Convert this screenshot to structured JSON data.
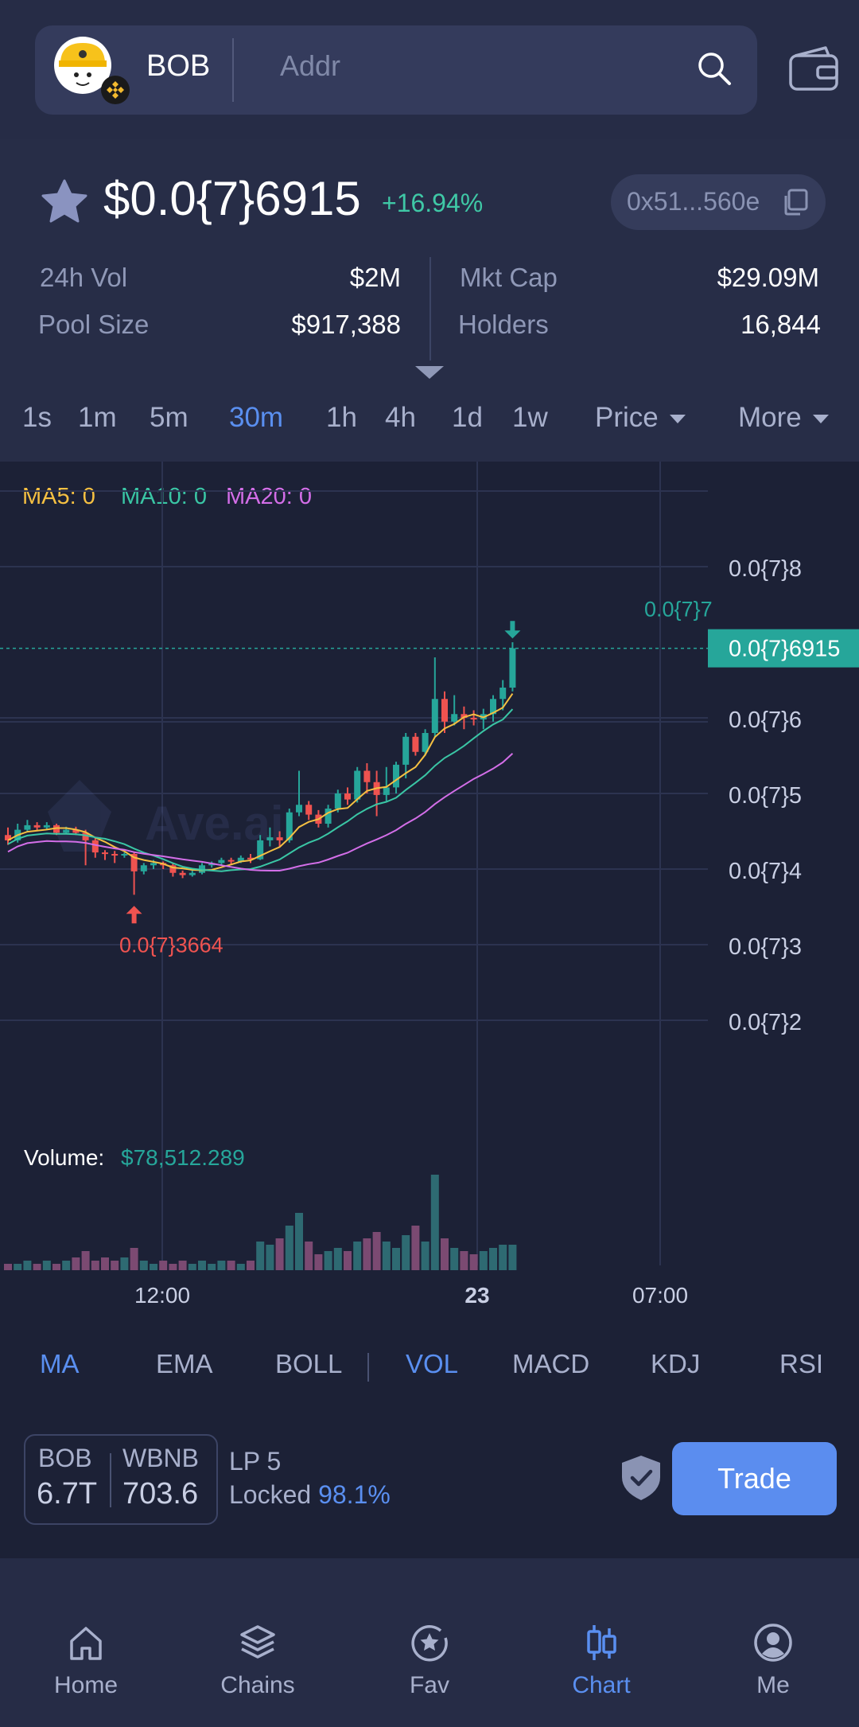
{
  "search": {
    "token": "BOB",
    "placeholder": "Addr"
  },
  "token": {
    "price": "$0.0{7}6915",
    "change": "+16.94%",
    "address": "0x51...560e",
    "stats": {
      "vol_label": "24h Vol",
      "vol": "$2M",
      "mcap_label": "Mkt Cap",
      "mcap": "$29.09M",
      "pool_label": "Pool Size",
      "pool": "$917,388",
      "holders_label": "Holders",
      "holders": "16,844"
    }
  },
  "timeframes": [
    "1s",
    "1m",
    "5m",
    "30m",
    "1h",
    "4h",
    "1d",
    "1w"
  ],
  "active_timeframe": "30m",
  "dropdowns": {
    "price": "Price",
    "more": "More"
  },
  "ma_legend": {
    "ma5": "MA5: 0",
    "ma10": "MA10: 0",
    "ma20": "MA20: 0"
  },
  "colors": {
    "up": "#26a69a",
    "down": "#ef5350",
    "ma5": "#f5c042",
    "ma10": "#3ac6a5",
    "ma20": "#d36ee8",
    "accent": "#5a8ff0",
    "volume_down": "#7b4a72",
    "volume_up": "#2e6a72"
  },
  "chart_data": {
    "type": "candlestick",
    "y_axis_labels": [
      "0.0{7}8",
      "0.0{7}6",
      "0.0{7}5",
      "0.0{7}4",
      "0.0{7}3",
      "0.0{7}2"
    ],
    "x_axis_labels": [
      "12:00",
      "23",
      "07:00"
    ],
    "current_price_label": "0.0{7}6915",
    "high_label": "0.0{7}7",
    "low_label": "0.0{7}3664",
    "volume_label": "Volume:",
    "volume_value": "$78,512.289",
    "watermark": "Ave.ai",
    "candles": [
      {
        "o": 4.45,
        "c": 4.38,
        "h": 4.55,
        "l": 4.32
      },
      {
        "o": 4.38,
        "c": 4.52,
        "h": 4.6,
        "l": 4.35
      },
      {
        "o": 4.52,
        "c": 4.58,
        "h": 4.65,
        "l": 4.5
      },
      {
        "o": 4.58,
        "c": 4.55,
        "h": 4.62,
        "l": 4.5
      },
      {
        "o": 4.55,
        "c": 4.58,
        "h": 4.62,
        "l": 4.52
      },
      {
        "o": 4.58,
        "c": 4.48,
        "h": 4.6,
        "l": 4.45
      },
      {
        "o": 4.48,
        "c": 4.52,
        "h": 4.56,
        "l": 4.46
      },
      {
        "o": 4.52,
        "c": 4.48,
        "h": 4.56,
        "l": 4.45
      },
      {
        "o": 4.48,
        "c": 4.38,
        "h": 4.52,
        "l": 4.05
      },
      {
        "o": 4.38,
        "c": 4.22,
        "h": 4.42,
        "l": 4.15
      },
      {
        "o": 4.22,
        "c": 4.2,
        "h": 4.25,
        "l": 4.12
      },
      {
        "o": 4.2,
        "c": 4.18,
        "h": 4.24,
        "l": 4.08
      },
      {
        "o": 4.18,
        "c": 4.2,
        "h": 4.22,
        "l": 4.15
      },
      {
        "o": 4.2,
        "c": 3.97,
        "h": 4.22,
        "l": 3.66
      },
      {
        "o": 3.97,
        "c": 4.05,
        "h": 4.08,
        "l": 3.93
      },
      {
        "o": 4.05,
        "c": 4.08,
        "h": 4.12,
        "l": 4.0
      },
      {
        "o": 4.08,
        "c": 4.05,
        "h": 4.1,
        "l": 4.0
      },
      {
        "o": 4.05,
        "c": 3.95,
        "h": 4.08,
        "l": 3.9
      },
      {
        "o": 3.95,
        "c": 3.92,
        "h": 3.98,
        "l": 3.88
      },
      {
        "o": 3.92,
        "c": 3.95,
        "h": 3.98,
        "l": 3.9
      },
      {
        "o": 3.95,
        "c": 4.05,
        "h": 4.08,
        "l": 3.93
      },
      {
        "o": 4.05,
        "c": 4.08,
        "h": 4.1,
        "l": 4.02
      },
      {
        "o": 4.08,
        "c": 4.12,
        "h": 4.15,
        "l": 4.05
      },
      {
        "o": 4.12,
        "c": 4.1,
        "h": 4.15,
        "l": 4.06
      },
      {
        "o": 4.1,
        "c": 4.15,
        "h": 4.18,
        "l": 4.08
      },
      {
        "o": 4.15,
        "c": 4.13,
        "h": 4.2,
        "l": 4.08
      },
      {
        "o": 4.13,
        "c": 4.38,
        "h": 4.45,
        "l": 4.12
      },
      {
        "o": 4.38,
        "c": 4.42,
        "h": 4.55,
        "l": 4.3
      },
      {
        "o": 4.42,
        "c": 4.38,
        "h": 4.5,
        "l": 4.3
      },
      {
        "o": 4.38,
        "c": 4.75,
        "h": 4.8,
        "l": 4.35
      },
      {
        "o": 4.75,
        "c": 4.85,
        "h": 5.3,
        "l": 4.7
      },
      {
        "o": 4.85,
        "c": 4.72,
        "h": 4.9,
        "l": 4.65
      },
      {
        "o": 4.72,
        "c": 4.6,
        "h": 4.78,
        "l": 4.55
      },
      {
        "o": 4.6,
        "c": 4.8,
        "h": 4.85,
        "l": 4.55
      },
      {
        "o": 4.8,
        "c": 5.0,
        "h": 5.05,
        "l": 4.75
      },
      {
        "o": 5.0,
        "c": 4.92,
        "h": 5.08,
        "l": 4.85
      },
      {
        "o": 4.92,
        "c": 5.3,
        "h": 5.35,
        "l": 4.88
      },
      {
        "o": 5.3,
        "c": 5.15,
        "h": 5.4,
        "l": 5.0
      },
      {
        "o": 5.15,
        "c": 4.98,
        "h": 5.3,
        "l": 4.7
      },
      {
        "o": 4.98,
        "c": 5.08,
        "h": 5.35,
        "l": 4.9
      },
      {
        "o": 5.08,
        "c": 5.38,
        "h": 5.42,
        "l": 5.0
      },
      {
        "o": 5.38,
        "c": 5.75,
        "h": 5.8,
        "l": 5.2
      },
      {
        "o": 5.75,
        "c": 5.55,
        "h": 5.8,
        "l": 5.5
      },
      {
        "o": 5.55,
        "c": 5.8,
        "h": 5.85,
        "l": 5.5
      },
      {
        "o": 5.8,
        "c": 6.25,
        "h": 6.8,
        "l": 5.75
      },
      {
        "o": 6.25,
        "c": 5.95,
        "h": 6.35,
        "l": 5.8
      },
      {
        "o": 5.95,
        "c": 6.05,
        "h": 6.3,
        "l": 5.9
      },
      {
        "o": 6.05,
        "c": 6.0,
        "h": 6.15,
        "l": 5.85
      },
      {
        "o": 6.0,
        "c": 5.98,
        "h": 6.1,
        "l": 5.9
      },
      {
        "o": 5.98,
        "c": 6.05,
        "h": 6.12,
        "l": 5.85
      },
      {
        "o": 6.05,
        "c": 6.25,
        "h": 6.3,
        "l": 5.95
      },
      {
        "o": 6.25,
        "c": 6.4,
        "h": 6.5,
        "l": 6.1
      },
      {
        "o": 6.4,
        "c": 6.92,
        "h": 7.0,
        "l": 6.35
      }
    ],
    "volumes": [
      2,
      2,
      3,
      2,
      3,
      2,
      3,
      4,
      6,
      3,
      4,
      3,
      4,
      7,
      3,
      2,
      3,
      2,
      3,
      2,
      3,
      2,
      3,
      3,
      2,
      3,
      9,
      8,
      10,
      14,
      18,
      9,
      5,
      6,
      7,
      6,
      9,
      10,
      12,
      9,
      7,
      11,
      14,
      9,
      30,
      10,
      7,
      6,
      5,
      6,
      7,
      8,
      8
    ]
  },
  "indicators": [
    "MA",
    "EMA",
    "BOLL",
    "VOL",
    "MACD",
    "KDJ",
    "RSI"
  ],
  "pool": {
    "base": "BOB",
    "base_amt": "6.7T",
    "quote": "WBNB",
    "quote_amt": "703.6",
    "lp": "LP 5",
    "locked_label": "Locked",
    "locked_pct": "98.1%"
  },
  "trade_label": "Trade",
  "nav": [
    {
      "label": "Home",
      "icon": "home-icon"
    },
    {
      "label": "Chains",
      "icon": "layers-icon"
    },
    {
      "label": "Fav",
      "icon": "star-circle-icon"
    },
    {
      "label": "Chart",
      "icon": "candlestick-icon"
    },
    {
      "label": "Me",
      "icon": "user-icon"
    }
  ],
  "active_nav": "Chart"
}
